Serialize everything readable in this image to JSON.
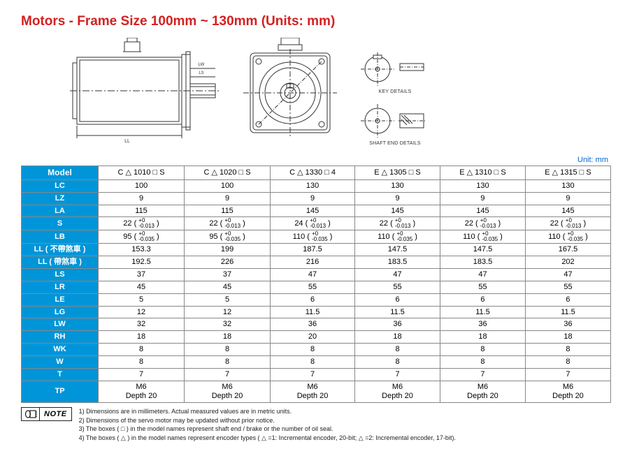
{
  "title": "Motors - Frame Size 100mm ~ 130mm (Units: mm)",
  "unit_label": "Unit: mm",
  "diagram_labels": {
    "key": "KEY DETAILS",
    "shaft": "SHAFT END DETAILS"
  },
  "table": {
    "header_label": "Model",
    "models": [
      "C △ 1010 □ S",
      "C △ 1020 □ S",
      "C △ 1330 □ 4",
      "E △ 1305 □ S",
      "E △ 1310 □ S",
      "E △ 1315 □ S"
    ],
    "rows": [
      {
        "label": "LC",
        "cells": [
          "100",
          "100",
          "130",
          "130",
          "130",
          "130"
        ]
      },
      {
        "label": "LZ",
        "cells": [
          "9",
          "9",
          "9",
          "9",
          "9",
          "9"
        ]
      },
      {
        "label": "LA",
        "cells": [
          "115",
          "115",
          "145",
          "145",
          "145",
          "145"
        ]
      },
      {
        "label": "S",
        "cells": [
          "22 ( ⁺⁰₋₀.₀₁₃ )",
          "22 ( ⁺⁰₋₀.₀₁₃ )",
          "24 ( ⁺⁰₋₀.₀₁₃ )",
          "22 ( ⁺⁰₋₀.₀₁₃ )",
          "22 ( ⁺⁰₋₀.₀₁₃ )",
          "22 ( ⁺⁰₋₀.₀₁₃ )"
        ]
      },
      {
        "label": "LB",
        "cells": [
          "95 ( ⁺⁰₋₀.₀₃₅ )",
          "95 ( ⁺⁰₋₀.₀₃₅ )",
          "110 ( ⁺⁰₋₀.₀₃₅ )",
          "110 ( ⁺⁰₋₀.₀₃₅ )",
          "110 ( ⁺⁰₋₀.₀₃₅ )",
          "110 ( ⁺⁰₋₀.₀₃₅ )"
        ]
      },
      {
        "label": "LL ( 不帶煞車 )",
        "cells": [
          "153.3",
          "199",
          "187.5",
          "147.5",
          "147.5",
          "167.5"
        ]
      },
      {
        "label": "LL ( 帶煞車 )",
        "cells": [
          "192.5",
          "226",
          "216",
          "183.5",
          "183.5",
          "202"
        ]
      },
      {
        "label": "LS",
        "cells": [
          "37",
          "37",
          "47",
          "47",
          "47",
          "47"
        ]
      },
      {
        "label": "LR",
        "cells": [
          "45",
          "45",
          "55",
          "55",
          "55",
          "55"
        ]
      },
      {
        "label": "LE",
        "cells": [
          "5",
          "5",
          "6",
          "6",
          "6",
          "6"
        ]
      },
      {
        "label": "LG",
        "cells": [
          "12",
          "12",
          "11.5",
          "11.5",
          "11.5",
          "11.5"
        ]
      },
      {
        "label": "LW",
        "cells": [
          "32",
          "32",
          "36",
          "36",
          "36",
          "36"
        ]
      },
      {
        "label": "RH",
        "cells": [
          "18",
          "18",
          "20",
          "18",
          "18",
          "18"
        ]
      },
      {
        "label": "WK",
        "cells": [
          "8",
          "8",
          "8",
          "8",
          "8",
          "8"
        ]
      },
      {
        "label": "W",
        "cells": [
          "8",
          "8",
          "8",
          "8",
          "8",
          "8"
        ]
      },
      {
        "label": "T",
        "cells": [
          "7",
          "7",
          "7",
          "7",
          "7",
          "7"
        ]
      },
      {
        "label": "TP",
        "cells": [
          "M6\nDepth 20",
          "M6\nDepth 20",
          "M6\nDepth 20",
          "M6\nDepth 20",
          "M6\nDepth 20",
          "M6\nDepth 20"
        ]
      }
    ]
  },
  "note_badge": "NOTE",
  "notes": [
    "1) Dimensions are in millimeters. Actual measured values are in metric units.",
    "2) Dimensions of the servo motor may be updated without prior notice.",
    "3) The boxes ( □ ) in the model names represent shaft end / brake or the number of oil seal.",
    "4) The boxes ( △ ) in the model names represent encoder types ( △ =1: Incremental encoder, 20-bit; △ =2: Incremental encoder, 17-bit)."
  ],
  "colors": {
    "title": "#d42020",
    "header_bg": "#0095d8",
    "unit": "#0066cc",
    "border": "#888888"
  }
}
